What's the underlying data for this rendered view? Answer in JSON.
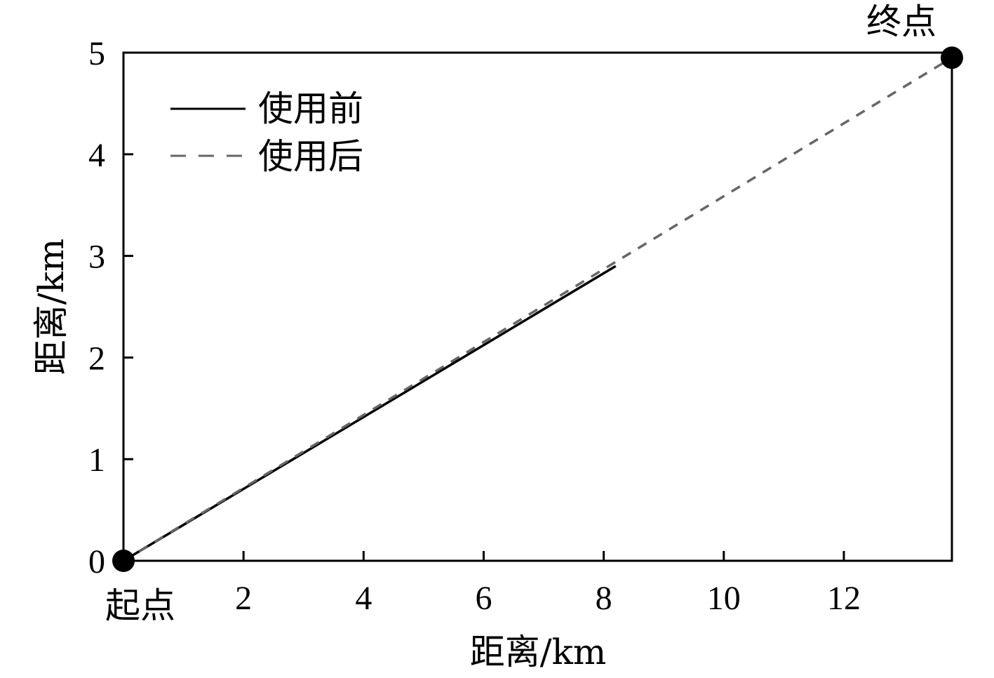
{
  "chart_data": {
    "type": "line",
    "xlabel": "距离/km",
    "ylabel": "距离/km",
    "xlim": [
      0,
      13.8
    ],
    "ylim": [
      0,
      5
    ],
    "x_ticks": [
      2,
      4,
      6,
      8,
      10,
      12
    ],
    "y_ticks": [
      0,
      1,
      2,
      3,
      4,
      5
    ],
    "grid": false,
    "legend_position": "top-left",
    "series": [
      {
        "name": "使用前",
        "style": "solid",
        "color": "#000000",
        "points": [
          [
            0,
            0
          ],
          [
            8.2,
            2.9
          ]
        ]
      },
      {
        "name": "使用后",
        "style": "dashed",
        "color": "#666666",
        "points": [
          [
            0,
            0
          ],
          [
            13.8,
            4.95
          ]
        ]
      }
    ],
    "markers": [
      {
        "label": "起点",
        "x": 0,
        "y": 0
      },
      {
        "label": "终点",
        "x": 13.8,
        "y": 4.95
      }
    ]
  }
}
